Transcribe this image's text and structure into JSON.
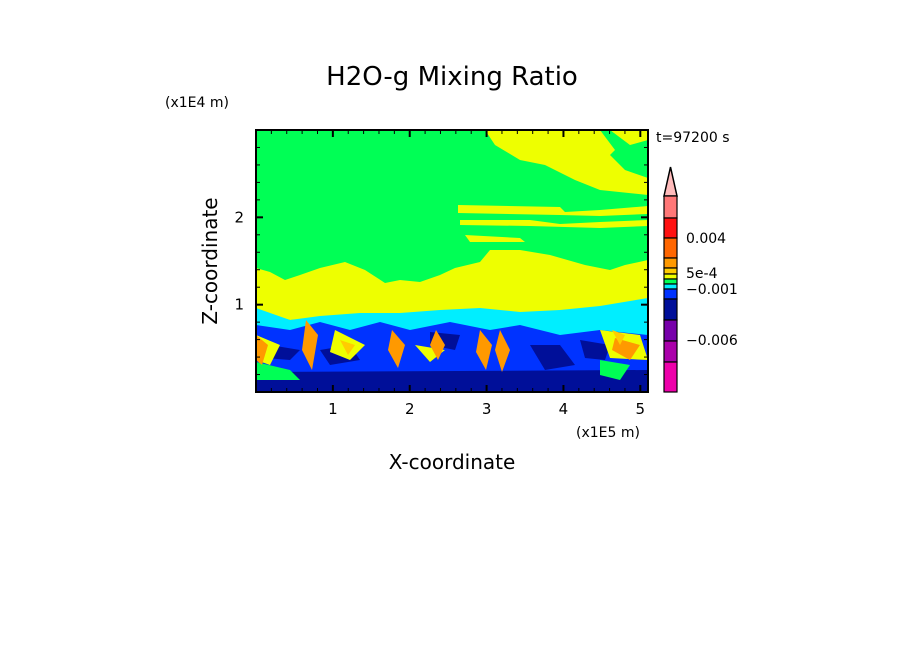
{
  "chart_data": {
    "type": "heatmap",
    "title": "H2O-g Mixing Ratio",
    "xlabel": "X-coordinate",
    "ylabel": "Z-coordinate",
    "x_unit": "(x1E5 m)",
    "y_unit": "(x1E4 m)",
    "time_label": "t=97200 s",
    "xlim": [
      0,
      5.1
    ],
    "ylim": [
      0,
      3.0
    ],
    "x_ticks": [
      1,
      2,
      3,
      4,
      5
    ],
    "y_ticks": [
      1,
      2
    ],
    "x_tick_labels": [
      "1",
      "2",
      "3",
      "4",
      "5"
    ],
    "y_tick_labels": [
      "1",
      "2"
    ],
    "colorbar": {
      "colors": [
        "#ff7777",
        "#ff1111",
        "#ff6600",
        "#ff9900",
        "#ffcc00",
        "#eeff00",
        "#00ff55",
        "#00eeff",
        "#0033ff",
        "#000f99",
        "#7700aa",
        "#aa00aa",
        "#ee00aa"
      ],
      "extend_color": "#ffbbbb",
      "labels": [
        {
          "text": "0.004",
          "value": 0.004
        },
        {
          "text": "5e-4",
          "value": 0.0005
        },
        {
          "text": "−0.001",
          "value": -0.001
        },
        {
          "text": "−0.006",
          "value": -0.006
        }
      ]
    },
    "field_colors": {
      "background": "#00ff55",
      "yellow": "#eeff00",
      "cyan": "#00eeff",
      "blue": "#0033ff",
      "navy": "#000f99",
      "orange": "#ff9900",
      "gold": "#ffcc00"
    }
  }
}
